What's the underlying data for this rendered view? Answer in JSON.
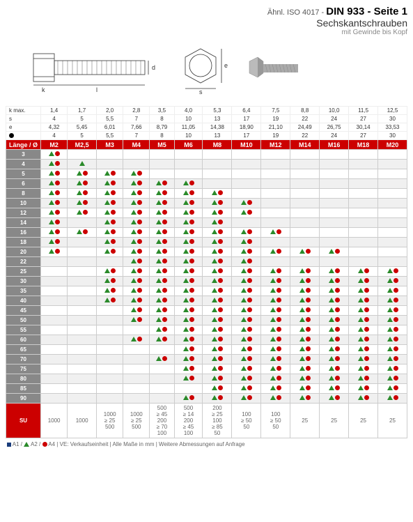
{
  "header": {
    "line1_prefix": "Ähnl. ISO 4017 - ",
    "line1_bold": "DIN 933 - Seite 1",
    "line2": "Sechskantschrauben",
    "line3": "mit Gewinde bis Kopf"
  },
  "specs": {
    "labels": [
      "k max.",
      "s",
      "e",
      ""
    ],
    "rows": [
      [
        "1,4",
        "1,7",
        "2,0",
        "2,8",
        "3,5",
        "4,0",
        "5,3",
        "6,4",
        "7,5",
        "8,8",
        "10,0",
        "11,5",
        "12,5"
      ],
      [
        "4",
        "5",
        "5,5",
        "7",
        "8",
        "10",
        "13",
        "17",
        "19",
        "22",
        "24",
        "27",
        "30"
      ],
      [
        "4,32",
        "5,45",
        "6,01",
        "7,66",
        "8,79",
        "11,05",
        "14,38",
        "18,90",
        "21,10",
        "24,49",
        "26,75",
        "30,14",
        "33,53"
      ],
      [
        "4",
        "5",
        "5,5",
        "7",
        "8",
        "10",
        "13",
        "17",
        "19",
        "22",
        "24",
        "27",
        "30"
      ]
    ]
  },
  "columns_header": "Länge / Ø",
  "sizes": [
    "M2",
    "M2,5",
    "M3",
    "M4",
    "M5",
    "M6",
    "M8",
    "M10",
    "M12",
    "M14",
    "M16",
    "M18",
    "M20"
  ],
  "lengths": [
    "3",
    "4",
    "5",
    "6",
    "8",
    "10",
    "12",
    "14",
    "16",
    "18",
    "20",
    "22",
    "25",
    "30",
    "35",
    "40",
    "45",
    "50",
    "55",
    "60",
    "65",
    "70",
    "75",
    "80",
    "85",
    "90"
  ],
  "availability": {
    "3": [
      "a2a4",
      "",
      "",
      "",
      "",
      "",
      "",
      "",
      "",
      "",
      "",
      "",
      ""
    ],
    "4": [
      "a2a4",
      "a2",
      "",
      "",
      "",
      "",
      "",
      "",
      "",
      "",
      "",
      "",
      ""
    ],
    "5": [
      "a2a4",
      "a2a4",
      "a2a4",
      "a2a4",
      "",
      "",
      "",
      "",
      "",
      "",
      "",
      "",
      ""
    ],
    "6": [
      "a2a4",
      "a2a4",
      "a2a4",
      "a2a4",
      "a2a4",
      "a2a4",
      "",
      "",
      "",
      "",
      "",
      "",
      ""
    ],
    "8": [
      "a2a4",
      "a2a4",
      "a2a4",
      "a2a4",
      "a2a4",
      "a2a4",
      "a2a4",
      "",
      "",
      "",
      "",
      "",
      ""
    ],
    "10": [
      "a2a4",
      "a2a4",
      "a2a4",
      "a2a4",
      "a2a4",
      "a2a4",
      "a2a4",
      "a2a4",
      "",
      "",
      "",
      "",
      ""
    ],
    "12": [
      "a2a4",
      "a2a4",
      "a2a4",
      "a2a4",
      "a2a4",
      "a2a4",
      "a2a4",
      "a2a4",
      "",
      "",
      "",
      "",
      ""
    ],
    "14": [
      "a2a4",
      "",
      "a2a4",
      "a2a4",
      "a2a4",
      "a2a4",
      "a2a4",
      "",
      "",
      "",
      "",
      "",
      ""
    ],
    "16": [
      "a2a4",
      "a2a4",
      "a2a4",
      "a2a4",
      "a2a4",
      "a2a4",
      "a2a4",
      "a2a4",
      "a2a4",
      "",
      "",
      "",
      ""
    ],
    "18": [
      "a2a4",
      "",
      "a2a4",
      "a2a4",
      "a2a4",
      "a2a4",
      "a2a4",
      "a2a4",
      "",
      "",
      "",
      "",
      ""
    ],
    "20": [
      "a2a4",
      "",
      "a2a4",
      "a2a4",
      "a2a4",
      "a2a4",
      "a2a4",
      "a2a4",
      "a2a4",
      "a2a4",
      "a2a4",
      "",
      ""
    ],
    "22": [
      "",
      "",
      "",
      "a2a4",
      "a2a4",
      "a2a4",
      "a2a4",
      "a2a4",
      "",
      "",
      "",
      "",
      ""
    ],
    "25": [
      "",
      "",
      "a2a4",
      "a2a4",
      "a2a4",
      "a2a4",
      "a2a4",
      "a2a4",
      "a2a4",
      "a2a4",
      "a2a4",
      "a2a4",
      "a2a4"
    ],
    "30": [
      "",
      "",
      "a2a4",
      "a2a4",
      "a2a4",
      "a2a4",
      "a2a4",
      "a2a4",
      "a2a4",
      "a2a4",
      "a2a4",
      "a2a4",
      "a2a4"
    ],
    "35": [
      "",
      "",
      "a2a4",
      "a2a4",
      "a2a4",
      "a2a4",
      "a2a4",
      "a2a4",
      "a2a4",
      "a2a4",
      "a2a4",
      "a2a4",
      "a2a4"
    ],
    "40": [
      "",
      "",
      "a2a4",
      "a2a4",
      "a2a4",
      "a2a4",
      "a2a4",
      "a2a4",
      "a2a4",
      "a2a4",
      "a2a4",
      "a2a4",
      "a2a4"
    ],
    "45": [
      "",
      "",
      "",
      "a2a4",
      "a2a4",
      "a2a4",
      "a2a4",
      "a2a4",
      "a2a4",
      "a2a4",
      "a2a4",
      "a2a4",
      "a2a4"
    ],
    "50": [
      "",
      "",
      "",
      "a2a4",
      "a2a4",
      "a2a4",
      "a2a4",
      "a2a4",
      "a2a4",
      "a2a4",
      "a2a4",
      "a2a4",
      "a2a4"
    ],
    "55": [
      "",
      "",
      "",
      "",
      "a2a4",
      "a2a4",
      "a2a4",
      "a2a4",
      "a2a4",
      "a2a4",
      "a2a4",
      "a2a4",
      "a2a4"
    ],
    "60": [
      "",
      "",
      "",
      "a2a4",
      "a2a4",
      "a2a4",
      "a2a4",
      "a2a4",
      "a2a4",
      "a2a4",
      "a2a4",
      "a2a4",
      "a2a4"
    ],
    "65": [
      "",
      "",
      "",
      "",
      "",
      "a2a4",
      "a2a4",
      "a2a4",
      "a2a4",
      "a2a4",
      "a2a4",
      "a2a4",
      "a2a4"
    ],
    "70": [
      "",
      "",
      "",
      "",
      "a2a4",
      "a2a4",
      "a2a4",
      "a2a4",
      "a2a4",
      "a2a4",
      "a2a4",
      "a2a4",
      "a2a4"
    ],
    "75": [
      "",
      "",
      "",
      "",
      "",
      "a2a4",
      "a2a4",
      "a2a4",
      "a2a4",
      "a2a4",
      "a2a4",
      "a2a4",
      "a2a4"
    ],
    "80": [
      "",
      "",
      "",
      "",
      "",
      "a2a4",
      "a2a4",
      "a2a4",
      "a2a4",
      "a2a4",
      "a2a4",
      "a2a4",
      "a2a4"
    ],
    "85": [
      "",
      "",
      "",
      "",
      "",
      "",
      "a2a4",
      "a2a4",
      "a2a4",
      "a2a4",
      "a2a4",
      "a2a4",
      "a2a4"
    ],
    "90": [
      "",
      "",
      "",
      "",
      "",
      "a2a4",
      "a2a4",
      "a2a4",
      "a2a4",
      "a2a4",
      "a2a4",
      "a2a4",
      "a2a4"
    ]
  },
  "su_label": "SU",
  "su_values": [
    "1000",
    "1000",
    "1000\n≥ 25\n500",
    "1000\n≥ 25\n500",
    "500\n≥ 45\n200\n≥ 70\n100",
    "500\n≥ 14\n200\n≥ 45\n100",
    "200\n≥ 25\n100\n≥ 85\n50",
    "100\n≥ 50\n50",
    "100\n≥ 50\n50",
    "25",
    "25",
    "25",
    "25"
  ],
  "footer": {
    "a1": "A1",
    "a2": "A2",
    "a4": "A4",
    "text": "VE: Verkaufseinheit | Alle Maße in mm | Weitere Abmessungen auf Anfrage"
  },
  "colors": {
    "red": "#c00",
    "green": "#2a8a2a",
    "blue": "#1a3d7c",
    "grey": "#888"
  }
}
